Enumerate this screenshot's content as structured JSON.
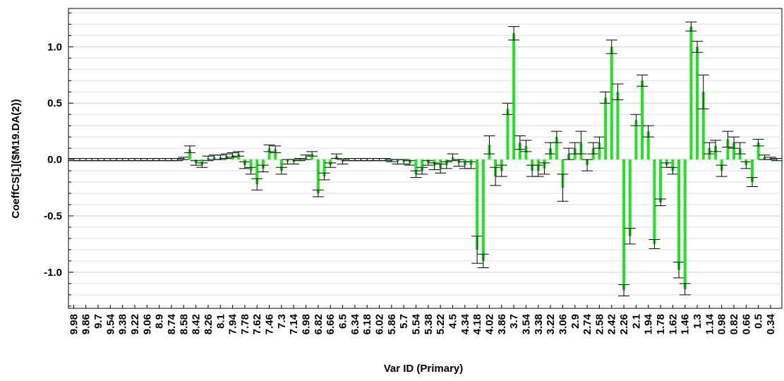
{
  "chart_data": {
    "type": "errorbar",
    "ylabel": "CoeffCS[1]($M19.DA(2))",
    "xlabel": "Var ID (Primary)",
    "color": "#22e022",
    "error_color": "#000000",
    "categories": [
      "9.98",
      null,
      "9.86",
      null,
      "9.7",
      null,
      "9.54",
      null,
      "9.38",
      null,
      "9.22",
      null,
      "9.06",
      null,
      "8.9",
      null,
      "8.74",
      null,
      "8.58",
      null,
      "8.42",
      null,
      "8.26",
      null,
      "8.1",
      null,
      "7.94",
      null,
      "7.78",
      null,
      "7.62",
      null,
      "7.46",
      null,
      "7.3",
      null,
      "7.14",
      null,
      "6.98",
      null,
      "6.82",
      null,
      "6.66",
      null,
      "6.5",
      null,
      "6.34",
      null,
      "6.18",
      null,
      "6.02",
      null,
      "5.86",
      null,
      "5.7",
      null,
      "5.54",
      null,
      "5.38",
      null,
      "5.22",
      null,
      "4.5",
      null,
      "4.34",
      null,
      "4.18",
      null,
      "4.02",
      null,
      "3.86",
      null,
      "3.7",
      null,
      "3.54",
      null,
      "3.38",
      null,
      "3.22",
      null,
      "3.06",
      null,
      "2.9",
      null,
      "2.74",
      null,
      "2.58",
      null,
      "2.42",
      null,
      "2.26",
      null,
      "2.1",
      null,
      "1.94",
      null,
      "1.78",
      null,
      "1.62",
      null,
      "1.46",
      null,
      "1.3",
      null,
      "1.14",
      null,
      "0.98",
      null,
      "0.82",
      null,
      "0.66",
      null,
      "0.5",
      null,
      "0.34",
      null
    ],
    "values": [
      0,
      0,
      0,
      0,
      0,
      0,
      0,
      0,
      0,
      0,
      0,
      0,
      0,
      0,
      0,
      0,
      0,
      0,
      0.01,
      0.09,
      -0.03,
      -0.05,
      0.01,
      0.02,
      0.02,
      0.03,
      0.04,
      0.05,
      -0.05,
      -0.1,
      -0.22,
      -0.08,
      0.1,
      0.09,
      -0.1,
      -0.02,
      -0.02,
      0,
      0.02,
      0.05,
      -0.3,
      -0.15,
      -0.05,
      0.03,
      -0.02,
      0,
      0,
      0,
      0,
      0,
      0,
      0,
      -0.01,
      -0.02,
      -0.02,
      -0.03,
      -0.13,
      -0.1,
      -0.03,
      -0.06,
      -0.08,
      -0.05,
      0.02,
      -0.03,
      -0.05,
      -0.05,
      -0.8,
      -0.9,
      0.13,
      -0.15,
      -0.1,
      0.45,
      1.12,
      0.15,
      0.12,
      -0.1,
      -0.1,
      -0.08,
      0.1,
      0.2,
      -0.25,
      0.05,
      0.1,
      0.15,
      -0.05,
      0.1,
      0.15,
      0.55,
      1.0,
      0.6,
      -1.16,
      -0.68,
      0.35,
      0.7,
      0.25,
      -0.75,
      -0.38,
      -0.05,
      -0.1,
      -0.98,
      -1.15,
      1.18,
      1.0,
      0.6,
      0.1,
      0.12,
      -0.1,
      0.18,
      0.15,
      0.1,
      -0.05,
      -0.2,
      0.15,
      0.02,
      0.01,
      0
    ],
    "errors": [
      0.01,
      0.01,
      0.01,
      0.01,
      0.01,
      0.01,
      0.01,
      0.01,
      0.01,
      0.01,
      0.01,
      0.01,
      0.01,
      0.01,
      0.01,
      0.01,
      0.01,
      0.01,
      0.01,
      0.03,
      0.02,
      0.02,
      0.02,
      0.02,
      0.02,
      0.02,
      0.02,
      0.02,
      0.03,
      0.03,
      0.05,
      0.03,
      0.03,
      0.03,
      0.03,
      0.02,
      0.02,
      0.01,
      0.02,
      0.02,
      0.03,
      0.03,
      0.02,
      0.02,
      0.02,
      0.01,
      0.01,
      0.01,
      0.01,
      0.01,
      0.01,
      0.01,
      0.01,
      0.02,
      0.02,
      0.02,
      0.03,
      0.03,
      0.02,
      0.03,
      0.04,
      0.03,
      0.03,
      0.03,
      0.03,
      0.03,
      0.12,
      0.06,
      0.08,
      0.08,
      0.05,
      0.05,
      0.06,
      0.06,
      0.05,
      0.05,
      0.05,
      0.05,
      0.05,
      0.05,
      0.12,
      0.05,
      0.05,
      0.1,
      0.05,
      0.05,
      0.05,
      0.05,
      0.06,
      0.07,
      0.05,
      0.07,
      0.05,
      0.05,
      0.05,
      0.04,
      0.03,
      0.02,
      0.03,
      0.07,
      0.05,
      0.04,
      0.05,
      0.15,
      0.05,
      0.05,
      0.05,
      0.07,
      0.05,
      0.05,
      0.03,
      0.04,
      0.03,
      0.02,
      0.01,
      0.01
    ],
    "ylim": [
      -1.32,
      1.34
    ],
    "yticks": [
      {
        "value": -1.0,
        "label": "-1.0"
      },
      {
        "value": -0.5,
        "label": "-0.5"
      },
      {
        "value": 0,
        "label": "0.0"
      },
      {
        "value": 0.5,
        "label": "0.5"
      },
      {
        "value": 1.0,
        "label": "1.0"
      }
    ],
    "minor_yticks": [
      -1.3,
      -1.2,
      -1.1,
      -0.9,
      -0.8,
      -0.7,
      -0.6,
      -0.4,
      -0.3,
      -0.2,
      -0.1,
      0.1,
      0.2,
      0.3,
      0.4,
      0.6,
      0.7,
      0.8,
      0.9,
      1.1,
      1.2,
      1.3
    ],
    "grid": true
  }
}
